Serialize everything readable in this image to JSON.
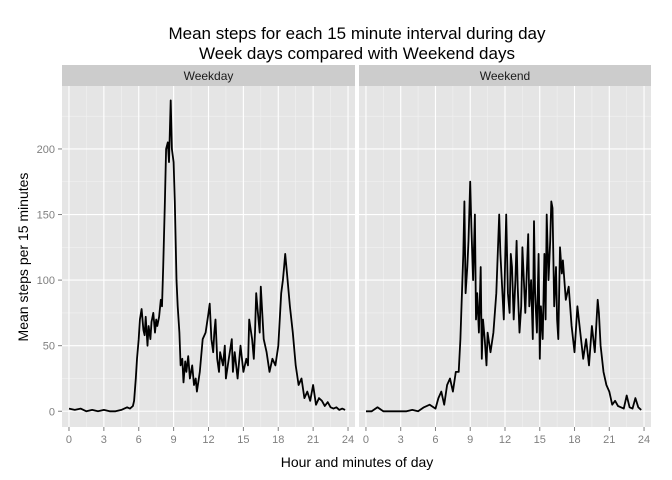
{
  "chart_data": {
    "type": "line",
    "title_line1": "Mean steps for each 15 minute interval during day",
    "title_line2": "Week days compared with Weekend days",
    "xlabel": "Hour and minutes of day",
    "ylabel": "Mean steps per 15 minutes",
    "xlim": [
      -0.6,
      24.6
    ],
    "ylim": [
      -12,
      248
    ],
    "x_ticks": [
      0,
      3,
      6,
      9,
      12,
      15,
      18,
      21,
      24
    ],
    "x_tick_labels": [
      "0",
      "3",
      "6",
      "9",
      "12",
      "15",
      "18",
      "21",
      "24"
    ],
    "y_ticks": [
      0,
      50,
      100,
      150,
      200
    ],
    "y_tick_labels": [
      "0",
      "50",
      "100",
      "150",
      "200"
    ],
    "grid": true,
    "line_color": "#000000",
    "panel_bg": "#e5e5e5",
    "strip_bg": "#cccccc",
    "grid_color": "#ffffff",
    "panels": [
      {
        "name": "Weekday",
        "x": [
          0,
          0.5,
          1,
          1.5,
          2,
          2.5,
          3,
          3.5,
          4,
          4.5,
          5,
          5.25,
          5.5,
          5.6,
          5.75,
          5.85,
          6,
          6.1,
          6.25,
          6.4,
          6.5,
          6.6,
          6.75,
          6.85,
          7,
          7.1,
          7.25,
          7.4,
          7.5,
          7.6,
          7.75,
          7.9,
          8,
          8.1,
          8.25,
          8.35,
          8.5,
          8.6,
          8.75,
          8.85,
          9,
          9.1,
          9.25,
          9.35,
          9.5,
          9.6,
          9.75,
          9.85,
          10,
          10.1,
          10.25,
          10.4,
          10.5,
          10.6,
          10.75,
          10.9,
          11,
          11.25,
          11.5,
          11.75,
          12,
          12.1,
          12.25,
          12.4,
          12.5,
          12.6,
          12.75,
          12.9,
          13,
          13.25,
          13.4,
          13.5,
          13.75,
          14,
          14.1,
          14.25,
          14.5,
          14.75,
          15,
          15.25,
          15.4,
          15.5,
          15.75,
          15.9,
          16,
          16.1,
          16.25,
          16.4,
          16.5,
          16.75,
          17,
          17.25,
          17.5,
          17.75,
          18,
          18.1,
          18.25,
          18.4,
          18.5,
          18.6,
          18.75,
          19,
          19.25,
          19.5,
          19.75,
          20,
          20.25,
          20.5,
          20.75,
          21,
          21.25,
          21.5,
          21.75,
          22,
          22.25,
          22.5,
          22.75,
          23,
          23.25,
          23.5,
          23.75
        ],
        "y": [
          2,
          1,
          2,
          0,
          1,
          0,
          1,
          0,
          0,
          1,
          3,
          2,
          4,
          8,
          25,
          40,
          55,
          70,
          78,
          62,
          58,
          72,
          50,
          65,
          55,
          68,
          75,
          60,
          70,
          65,
          72,
          85,
          80,
          110,
          160,
          200,
          205,
          190,
          237,
          200,
          190,
          160,
          100,
          80,
          60,
          35,
          40,
          22,
          38,
          30,
          42,
          25,
          30,
          35,
          20,
          25,
          15,
          30,
          55,
          60,
          75,
          82,
          55,
          45,
          60,
          70,
          40,
          30,
          45,
          35,
          50,
          25,
          40,
          55,
          30,
          45,
          25,
          50,
          30,
          40,
          35,
          70,
          55,
          40,
          60,
          90,
          75,
          60,
          95,
          55,
          45,
          30,
          40,
          35,
          50,
          65,
          90,
          100,
          110,
          120,
          105,
          80,
          60,
          35,
          20,
          25,
          10,
          15,
          8,
          20,
          5,
          10,
          8,
          4,
          7,
          3,
          2,
          3,
          1,
          2,
          1
        ]
      },
      {
        "name": "Weekend",
        "x": [
          0,
          0.5,
          1,
          1.5,
          2,
          2.5,
          3,
          3.5,
          4,
          4.5,
          5,
          5.5,
          6,
          6.25,
          6.5,
          6.75,
          7,
          7.25,
          7.5,
          7.75,
          8,
          8.15,
          8.25,
          8.4,
          8.5,
          8.6,
          8.75,
          8.85,
          9,
          9.1,
          9.25,
          9.4,
          9.5,
          9.6,
          9.75,
          9.9,
          10,
          10.1,
          10.25,
          10.4,
          10.5,
          10.75,
          11,
          11.25,
          11.5,
          11.6,
          11.75,
          11.9,
          12,
          12.1,
          12.25,
          12.4,
          12.5,
          12.6,
          12.75,
          12.9,
          13,
          13.1,
          13.25,
          13.4,
          13.5,
          13.75,
          14,
          14.1,
          14.25,
          14.4,
          14.5,
          14.6,
          14.75,
          14.9,
          15,
          15.1,
          15.25,
          15.4,
          15.5,
          15.6,
          15.75,
          15.9,
          16,
          16.1,
          16.25,
          16.4,
          16.5,
          16.6,
          16.75,
          16.9,
          17,
          17.25,
          17.5,
          17.75,
          18,
          18.25,
          18.5,
          18.75,
          19,
          19.25,
          19.5,
          19.75,
          20,
          20.1,
          20.25,
          20.5,
          20.75,
          21,
          21.25,
          21.5,
          21.75,
          22,
          22.25,
          22.5,
          22.75,
          23,
          23.25,
          23.5,
          23.75
        ],
        "y": [
          0,
          0,
          3,
          0,
          0,
          0,
          0,
          0,
          1,
          0,
          3,
          5,
          2,
          10,
          15,
          5,
          20,
          25,
          15,
          30,
          30,
          55,
          80,
          120,
          160,
          90,
          110,
          130,
          175,
          140,
          100,
          150,
          70,
          90,
          60,
          110,
          40,
          70,
          55,
          35,
          60,
          45,
          60,
          90,
          150,
          120,
          95,
          70,
          110,
          150,
          90,
          75,
          120,
          110,
          70,
          100,
          130,
          95,
          60,
          80,
          125,
          75,
          135,
          80,
          100,
          55,
          145,
          90,
          60,
          120,
          40,
          80,
          55,
          120,
          70,
          150,
          100,
          130,
          160,
          155,
          80,
          110,
          70,
          55,
          125,
          105,
          115,
          85,
          95,
          65,
          45,
          80,
          60,
          40,
          55,
          35,
          65,
          45,
          85,
          75,
          50,
          30,
          20,
          15,
          5,
          8,
          4,
          3,
          2,
          12,
          3,
          2,
          10,
          3,
          1
        ]
      }
    ]
  }
}
